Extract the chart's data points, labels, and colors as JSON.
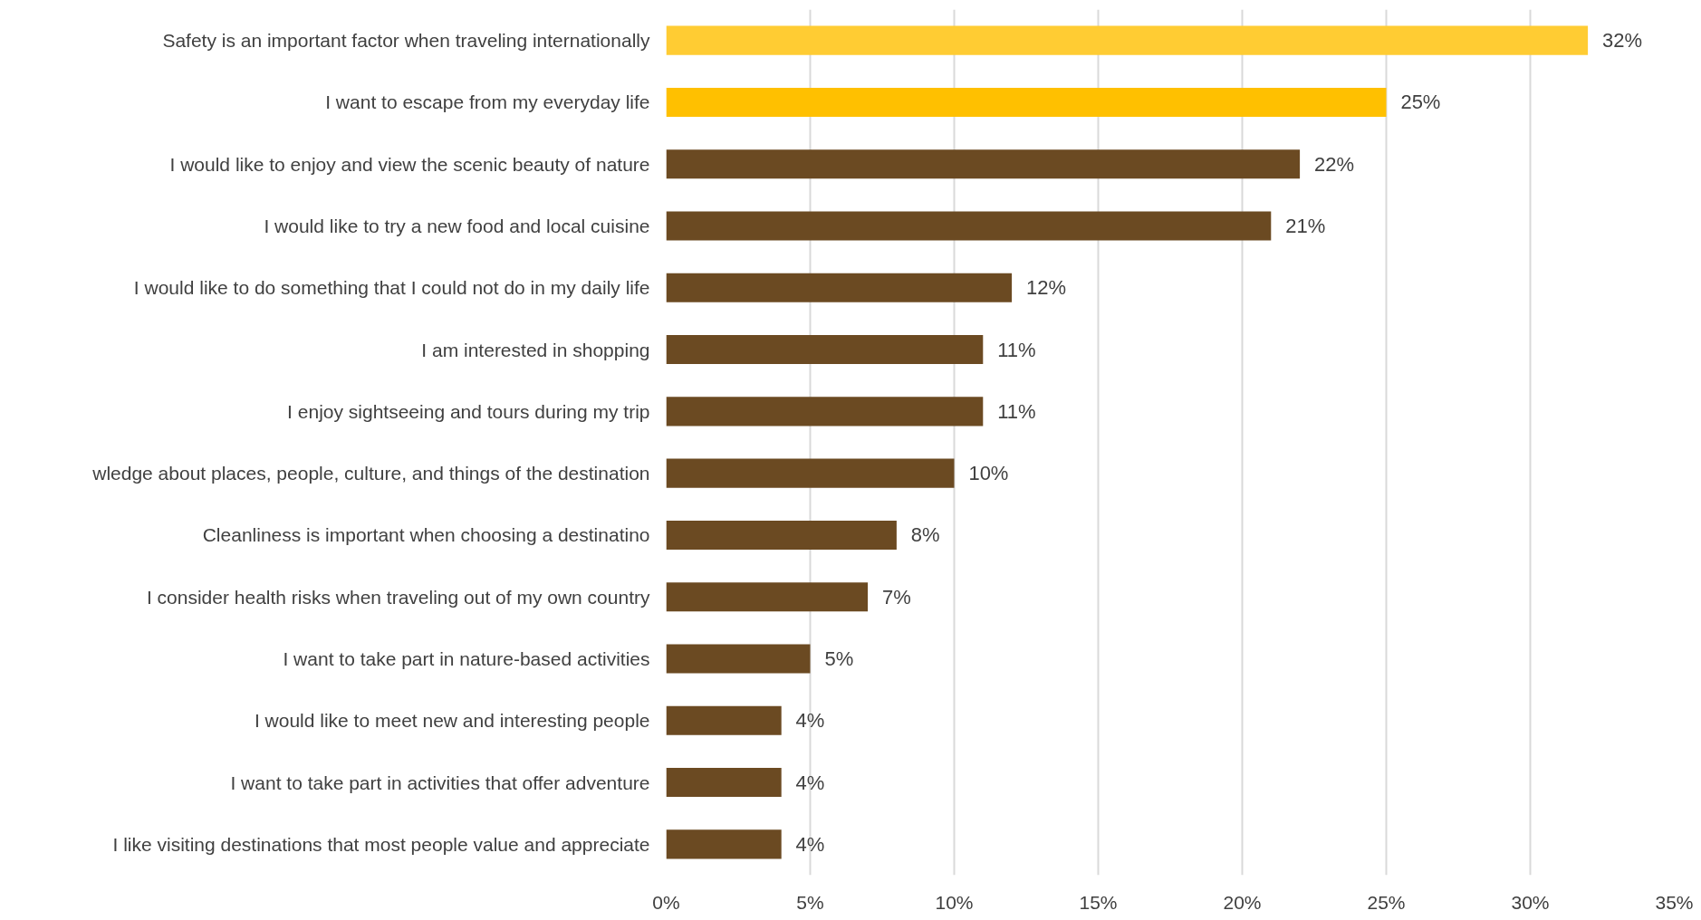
{
  "chart_data": {
    "type": "bar",
    "orientation": "horizontal",
    "categories": [
      "Safety is an important factor when traveling internationally",
      "I want to escape from my everyday life",
      "I would like to enjoy and view the scenic beauty of nature",
      "I would like to try a new food and local cuisine",
      "I would like to do something that I could not do in my daily life",
      "I am interested in shopping",
      "I enjoy sightseeing and tours during my trip",
      "wledge about places, people, culture, and things of the destination",
      "Cleanliness is important when choosing a destinatino",
      "I consider health risks when traveling out of my own country",
      "I want to take part in nature-based activities",
      "I would like to meet new and interesting people",
      "I want to take part in activities that offer adventure",
      "I like visiting destinations that most people value and appreciate"
    ],
    "values": [
      32,
      25,
      22,
      21,
      12,
      11,
      11,
      10,
      8,
      7,
      5,
      4,
      4,
      4
    ],
    "value_labels": [
      "32%",
      "25%",
      "22%",
      "21%",
      "12%",
      "11%",
      "11%",
      "10%",
      "8%",
      "7%",
      "5%",
      "4%",
      "4%",
      "4%"
    ],
    "colors": [
      "#ffcc33",
      "#ffc000",
      "#6b4a22",
      "#6b4a22",
      "#6b4a22",
      "#6b4a22",
      "#6b4a22",
      "#6b4a22",
      "#6b4a22",
      "#6b4a22",
      "#6b4a22",
      "#6b4a22",
      "#6b4a22",
      "#6b4a22"
    ],
    "xlim": [
      0,
      35
    ],
    "xticks": [
      {
        "value": 0,
        "label": "0%"
      },
      {
        "value": 5,
        "label": "5%"
      },
      {
        "value": 10,
        "label": "10%"
      },
      {
        "value": 15,
        "label": "15%"
      },
      {
        "value": 20,
        "label": "20%"
      },
      {
        "value": 25,
        "label": "25%"
      },
      {
        "value": 30,
        "label": "30%"
      },
      {
        "value": 35,
        "label": "35%"
      }
    ],
    "grid": "x"
  }
}
